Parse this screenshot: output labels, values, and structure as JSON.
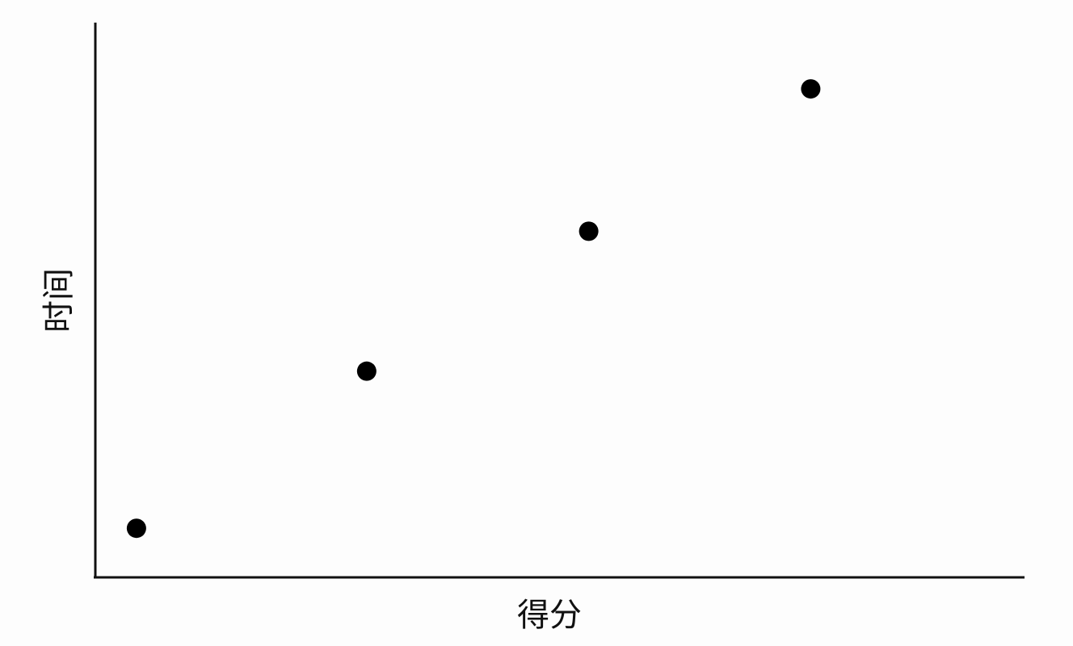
{
  "chart_data": {
    "type": "scatter",
    "xlabel": "得分",
    "ylabel": "时间",
    "xlim": [
      0,
      11.3
    ],
    "ylim": [
      0,
      11.3
    ],
    "points": [
      {
        "x": 0.5,
        "y": 1.0
      },
      {
        "x": 3.3,
        "y": 4.2
      },
      {
        "x": 6.0,
        "y": 7.05
      },
      {
        "x": 8.7,
        "y": 9.95
      }
    ],
    "grid": false,
    "ticks": false,
    "point_color": "#000000",
    "axis_color": "#111111"
  }
}
